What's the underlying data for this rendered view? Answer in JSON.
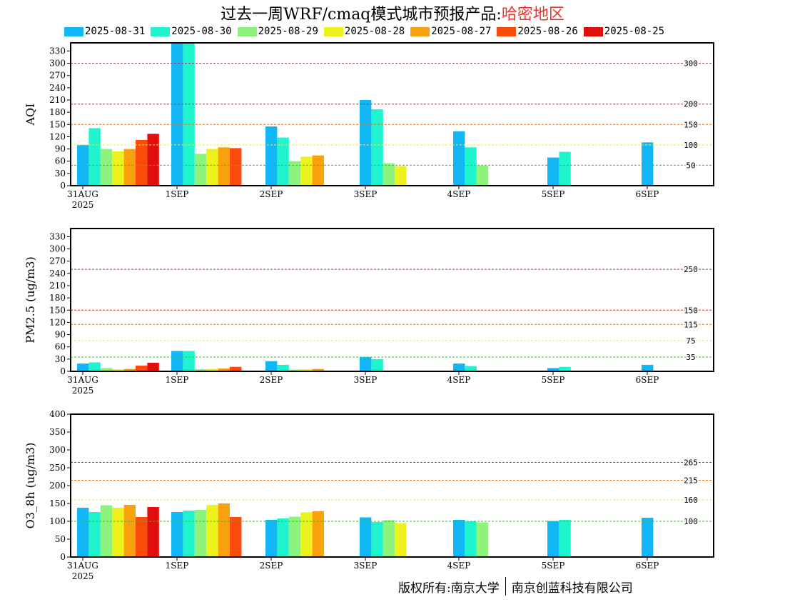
{
  "title": {
    "main": "过去一周WRF/cmaq模式城市预报产品:",
    "region": "哈密地区"
  },
  "colors": {
    "series": [
      "#12b8f5",
      "#1ef5cf",
      "#8df37a",
      "#eef21c",
      "#f9a20d",
      "#fb4b0b",
      "#e20d0d"
    ],
    "threshold_300": "#a0306a",
    "threshold_200": "#d32a2a",
    "threshold_150": "#e5761d",
    "threshold_100": "#f0e44a",
    "threshold_50": "#3bbf2e"
  },
  "footer": {
    "left": "版权所有:南京大学",
    "right": "南京创蓝科技有限公司"
  },
  "chart_data": [
    {
      "type": "bar",
      "ylabel": "AQI",
      "ylim": [
        0,
        350
      ],
      "yticks": [
        0,
        30,
        60,
        90,
        120,
        150,
        180,
        210,
        240,
        270,
        300,
        330
      ],
      "categories": [
        "31AUG",
        "1SEP",
        "2SEP",
        "3SEP",
        "4SEP",
        "5SEP",
        "6SEP"
      ],
      "category_sublabel": "2025",
      "series": [
        {
          "name": "2025-08-31",
          "values": [
            100,
            350,
            145,
            210,
            133,
            69,
            106
          ]
        },
        {
          "name": "2025-08-30",
          "values": [
            141,
            350,
            118,
            187,
            94,
            83,
            null
          ]
        },
        {
          "name": "2025-08-29",
          "values": [
            90,
            78,
            60,
            55,
            49,
            null,
            null
          ]
        },
        {
          "name": "2025-08-28",
          "values": [
            84,
            90,
            71,
            48,
            null,
            null,
            null
          ]
        },
        {
          "name": "2025-08-27",
          "values": [
            90,
            94,
            74,
            null,
            null,
            null,
            null
          ]
        },
        {
          "name": "2025-08-26",
          "values": [
            112,
            92,
            null,
            null,
            null,
            null,
            null
          ]
        },
        {
          "name": "2025-08-25",
          "values": [
            127,
            null,
            null,
            null,
            null,
            null,
            null
          ]
        }
      ],
      "thresholds": [
        {
          "value": 300,
          "label": "300",
          "color": "#a0306a"
        },
        {
          "value": 200,
          "label": "200",
          "color": "#d32a2a"
        },
        {
          "value": 150,
          "label": "150",
          "color": "#e5761d"
        },
        {
          "value": 100,
          "label": "100",
          "color": "#f0e44a"
        },
        {
          "value": 50,
          "label": "50",
          "color": "#3bbf2e"
        }
      ]
    },
    {
      "type": "bar",
      "ylabel": "PM2.5 (ug/m3)",
      "ylim": [
        0,
        350
      ],
      "yticks": [
        0,
        30,
        60,
        90,
        120,
        150,
        180,
        210,
        240,
        270,
        300,
        330
      ],
      "categories": [
        "31AUG",
        "1SEP",
        "2SEP",
        "3SEP",
        "4SEP",
        "5SEP",
        "6SEP"
      ],
      "category_sublabel": "2025",
      "series": [
        {
          "name": "2025-08-31",
          "values": [
            19,
            50,
            25,
            35,
            19,
            8,
            16
          ]
        },
        {
          "name": "2025-08-30",
          "values": [
            22,
            50,
            16,
            30,
            13,
            11,
            null
          ]
        },
        {
          "name": "2025-08-29",
          "values": [
            8,
            5,
            4,
            1,
            1,
            null,
            null
          ]
        },
        {
          "name": "2025-08-28",
          "values": [
            5,
            6,
            5,
            1,
            null,
            null,
            null
          ]
        },
        {
          "name": "2025-08-27",
          "values": [
            6,
            7,
            6,
            null,
            null,
            null,
            null
          ]
        },
        {
          "name": "2025-08-26",
          "values": [
            14,
            11,
            null,
            null,
            null,
            null,
            null
          ]
        },
        {
          "name": "2025-08-25",
          "values": [
            21,
            null,
            null,
            null,
            null,
            null,
            null
          ]
        }
      ],
      "thresholds": [
        {
          "value": 250,
          "label": "250",
          "color": "#a0306a"
        },
        {
          "value": 150,
          "label": "150",
          "color": "#d32a2a"
        },
        {
          "value": 115,
          "label": "115",
          "color": "#e5761d"
        },
        {
          "value": 75,
          "label": "75",
          "color": "#f0e44a"
        },
        {
          "value": 35,
          "label": "35",
          "color": "#3bbf2e"
        }
      ]
    },
    {
      "type": "bar",
      "ylabel": "O3_8h (ug/m3)",
      "ylim": [
        0,
        400
      ],
      "yticks": [
        0,
        50,
        100,
        150,
        200,
        250,
        300,
        350,
        400
      ],
      "categories": [
        "31AUG",
        "1SEP",
        "2SEP",
        "3SEP",
        "4SEP",
        "5SEP",
        "6SEP"
      ],
      "category_sublabel": "2025",
      "series": [
        {
          "name": "2025-08-31",
          "values": [
            138,
            126,
            104,
            111,
            104,
            101,
            110
          ]
        },
        {
          "name": "2025-08-30",
          "values": [
            126,
            130,
            108,
            98,
            100,
            104,
            null
          ]
        },
        {
          "name": "2025-08-29",
          "values": [
            145,
            132,
            113,
            103,
            97,
            null,
            null
          ]
        },
        {
          "name": "2025-08-28",
          "values": [
            138,
            146,
            125,
            95,
            null,
            null,
            null
          ]
        },
        {
          "name": "2025-08-27",
          "values": [
            146,
            150,
            128,
            null,
            null,
            null,
            null
          ]
        },
        {
          "name": "2025-08-26",
          "values": [
            112,
            112,
            null,
            null,
            null,
            null,
            null
          ]
        },
        {
          "name": "2025-08-25",
          "values": [
            140,
            null,
            null,
            null,
            null,
            null,
            null
          ]
        }
      ],
      "thresholds": [
        {
          "value": 265,
          "label": "265",
          "color": "#d32a2a"
        },
        {
          "value": 215,
          "label": "215",
          "color": "#e5761d"
        },
        {
          "value": 160,
          "label": "160",
          "color": "#f0e44a"
        },
        {
          "value": 100,
          "label": "100",
          "color": "#3bbf2e"
        }
      ]
    }
  ]
}
